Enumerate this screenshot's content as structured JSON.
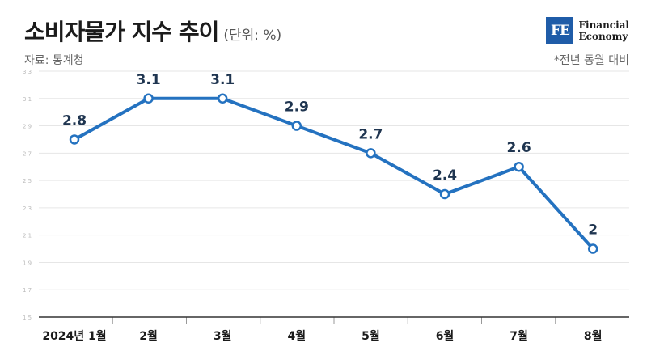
{
  "header": {
    "title": "소비자물가 지수 추이",
    "unit": "(단위: %)",
    "source": "자료: 통계청",
    "note": "*전년 동월 대비"
  },
  "logo": {
    "mark": "FE",
    "line1": "Financial",
    "line2": "Economy"
  },
  "chart_data": {
    "type": "line",
    "title": "소비자물가 지수 추이",
    "categories": [
      "2024년 1월",
      "2월",
      "3월",
      "4월",
      "5월",
      "6월",
      "7월",
      "8월"
    ],
    "series": [
      {
        "values": [
          2.8,
          3.1,
          3.1,
          2.9,
          2.7,
          2.4,
          2.6,
          2.0
        ]
      }
    ],
    "data_labels": [
      "2.8",
      "3.1",
      "3.1",
      "2.9",
      "2.7",
      "2.4",
      "2.6",
      "2"
    ],
    "yticks": [
      1.5,
      1.7,
      1.9,
      2.1,
      2.3,
      2.5,
      2.7,
      2.9,
      3.1,
      3.3
    ],
    "ytick_labels": [
      "1.5",
      "1.7",
      "1.9",
      "2.1",
      "2.3",
      "2.5",
      "2.7",
      "2.9",
      "3.1",
      "3.3"
    ],
    "ylim": [
      1.5,
      3.3
    ],
    "grid": true,
    "line_color": "#2472c0"
  }
}
